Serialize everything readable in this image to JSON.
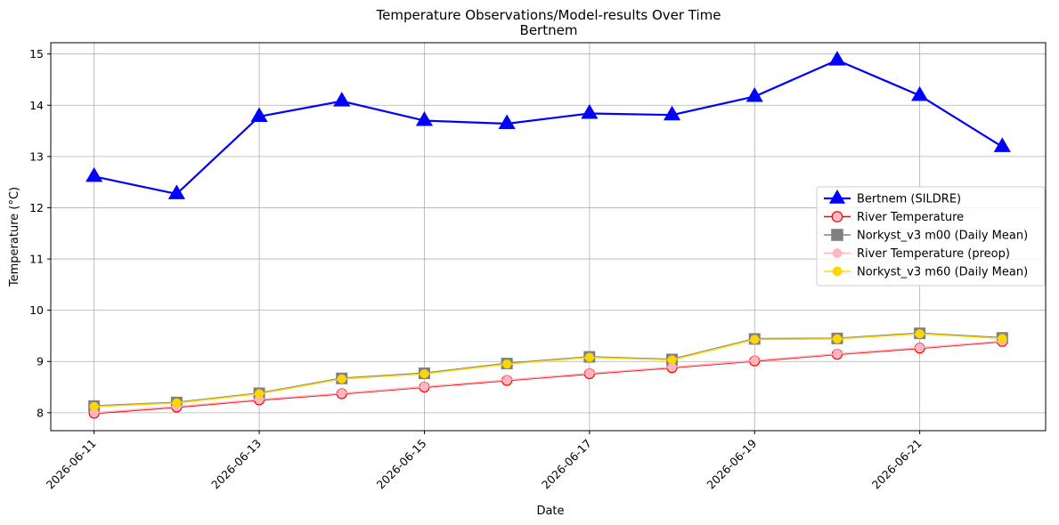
{
  "chart_data": {
    "type": "line",
    "title": "Temperature Observations/Model-results Over Time",
    "subtitle": "Bertnem",
    "xlabel": "Date",
    "ylabel": "Temperature (°C)",
    "x": [
      "2026-06-11",
      "2026-06-12",
      "2026-06-13",
      "2026-06-14",
      "2026-06-15",
      "2026-06-16",
      "2026-06-17",
      "2026-06-18",
      "2026-06-19",
      "2026-06-20",
      "2026-06-21",
      "2026-06-22"
    ],
    "x_ticks": [
      "2026-06-11",
      "2026-06-13",
      "2026-06-15",
      "2026-06-17",
      "2026-06-19",
      "2026-06-21"
    ],
    "xlim": [
      "2026-06-10T11:24",
      "2026-06-22T12:36"
    ],
    "ylim": [
      7.65,
      15.22
    ],
    "y_ticks": [
      8,
      9,
      10,
      11,
      12,
      13,
      14,
      15
    ],
    "grid": true,
    "legend_position": "center-right",
    "series": [
      {
        "name": "Bertnem (SILDRE)",
        "color": "#0000ff",
        "marker": "triangle",
        "values": [
          12.61,
          12.27,
          13.78,
          14.08,
          13.7,
          13.64,
          13.84,
          13.81,
          14.17,
          14.88,
          14.19,
          13.19
        ]
      },
      {
        "name": "River Temperature",
        "color": "#ff0000",
        "marker": "circle-hollow",
        "values": [
          7.99,
          8.11,
          8.25,
          8.37,
          8.5,
          8.63,
          8.76,
          8.88,
          9.01,
          9.14,
          9.26,
          9.39
        ]
      },
      {
        "name": "Norkyst_v3 m00 (Daily Mean)",
        "color": "#808080",
        "marker": "square",
        "values": [
          8.13,
          8.2,
          8.38,
          8.67,
          8.77,
          8.96,
          9.09,
          9.04,
          9.44,
          9.45,
          9.55,
          9.46
        ]
      },
      {
        "name": "River Temperature (preop)",
        "color": "#ffb6c1",
        "marker": "circle",
        "values": [
          8.0,
          8.12,
          8.26,
          8.38,
          8.51,
          8.64,
          8.77,
          8.89,
          9.02,
          9.15,
          9.27,
          9.4
        ]
      },
      {
        "name": "Norkyst_v3 m60 (Daily Mean)",
        "color": "#ffd700",
        "marker": "circle",
        "values": [
          8.12,
          8.19,
          8.37,
          8.66,
          8.76,
          8.95,
          9.08,
          9.03,
          9.43,
          9.44,
          9.54,
          9.45
        ]
      }
    ]
  }
}
